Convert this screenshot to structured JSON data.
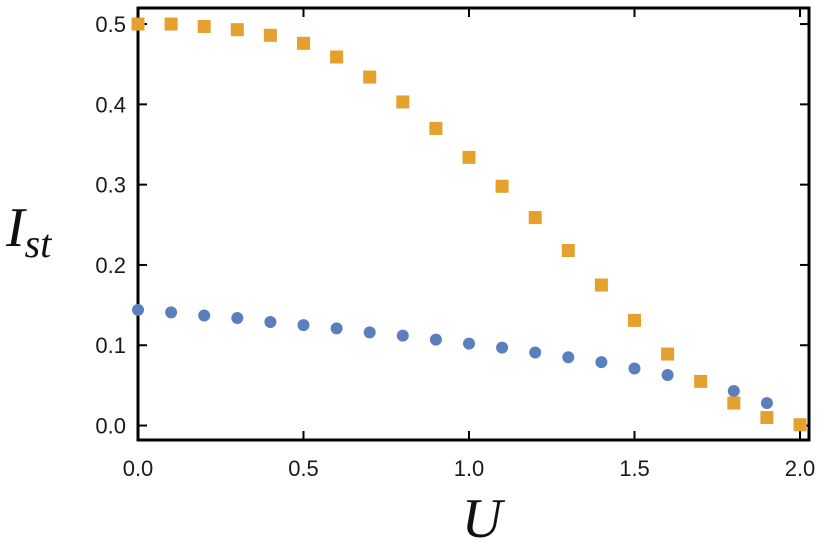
{
  "chart_data": {
    "type": "scatter",
    "xlabel": "U",
    "ylabel_main": "I",
    "ylabel_sub": "st",
    "xlim": [
      0.0,
      2.0
    ],
    "ylim": [
      -0.018,
      0.52
    ],
    "xticks": [
      0.0,
      0.5,
      1.0,
      1.5,
      2.0
    ],
    "xtick_labels": [
      "0.0",
      "0.5",
      "1.0",
      "1.5",
      "2.0"
    ],
    "yticks": [
      0.0,
      0.1,
      0.2,
      0.3,
      0.4,
      0.5
    ],
    "ytick_labels": [
      "0.0",
      "0.1",
      "0.2",
      "0.3",
      "0.4",
      "0.5"
    ],
    "grid": false,
    "series": [
      {
        "marker": "circle",
        "color": "#5b7fbd",
        "points": [
          {
            "x": 0.0,
            "y": 0.144
          },
          {
            "x": 0.1,
            "y": 0.141
          },
          {
            "x": 0.2,
            "y": 0.137
          },
          {
            "x": 0.3,
            "y": 0.134
          },
          {
            "x": 0.4,
            "y": 0.129
          },
          {
            "x": 0.5,
            "y": 0.125
          },
          {
            "x": 0.6,
            "y": 0.121
          },
          {
            "x": 0.7,
            "y": 0.116
          },
          {
            "x": 0.8,
            "y": 0.112
          },
          {
            "x": 0.9,
            "y": 0.107
          },
          {
            "x": 1.0,
            "y": 0.102
          },
          {
            "x": 1.1,
            "y": 0.097
          },
          {
            "x": 1.2,
            "y": 0.091
          },
          {
            "x": 1.3,
            "y": 0.085
          },
          {
            "x": 1.4,
            "y": 0.079
          },
          {
            "x": 1.5,
            "y": 0.071
          },
          {
            "x": 1.6,
            "y": 0.063
          },
          {
            "x": 1.8,
            "y": 0.043
          },
          {
            "x": 1.9,
            "y": 0.028
          }
        ]
      },
      {
        "marker": "square",
        "color": "#e5a02d",
        "points": [
          {
            "x": 0.0,
            "y": 0.5
          },
          {
            "x": 0.1,
            "y": 0.5
          },
          {
            "x": 0.2,
            "y": 0.497
          },
          {
            "x": 0.3,
            "y": 0.493
          },
          {
            "x": 0.4,
            "y": 0.486
          },
          {
            "x": 0.5,
            "y": 0.476
          },
          {
            "x": 0.6,
            "y": 0.459
          },
          {
            "x": 0.7,
            "y": 0.434
          },
          {
            "x": 0.8,
            "y": 0.403
          },
          {
            "x": 0.9,
            "y": 0.37
          },
          {
            "x": 1.0,
            "y": 0.334
          },
          {
            "x": 1.1,
            "y": 0.298
          },
          {
            "x": 1.2,
            "y": 0.259
          },
          {
            "x": 1.3,
            "y": 0.218
          },
          {
            "x": 1.4,
            "y": 0.175
          },
          {
            "x": 1.5,
            "y": 0.131
          },
          {
            "x": 1.6,
            "y": 0.089
          },
          {
            "x": 1.7,
            "y": 0.055
          },
          {
            "x": 1.8,
            "y": 0.028
          },
          {
            "x": 1.9,
            "y": 0.01
          },
          {
            "x": 2.0,
            "y": 0.001
          }
        ]
      }
    ]
  }
}
